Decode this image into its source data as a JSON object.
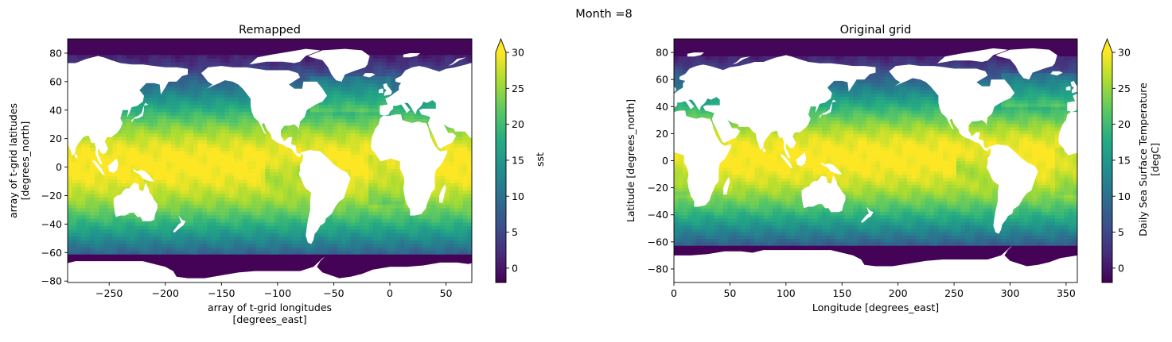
{
  "figure": {
    "suptitle": "Month =8"
  },
  "chart_data": [
    {
      "type": "heatmap",
      "title": "Remapped",
      "xlabel_lines": [
        "array of t-grid longitudes",
        "[degrees_east]"
      ],
      "ylabel_lines": [
        "array of t-grid latitudes",
        "[degrees_north]"
      ],
      "xlim": [
        -287,
        73
      ],
      "ylim": [
        -81,
        90
      ],
      "xticks": [
        -250,
        -200,
        -150,
        -100,
        -50,
        0,
        50
      ],
      "yticks": [
        -80,
        -60,
        -40,
        -20,
        0,
        20,
        40,
        60,
        80
      ],
      "colorbar": {
        "label_lines": [
          "sst"
        ],
        "range": [
          -2,
          30
        ],
        "ticks": [
          0,
          5,
          10,
          15,
          20,
          25,
          30
        ],
        "extend": "max",
        "colormap": "viridis"
      },
      "variable": "sst",
      "land_color": "#ffffff"
    },
    {
      "type": "heatmap",
      "title": "Original grid",
      "xlabel_lines": [
        "Longitude [degrees_east]"
      ],
      "ylabel_lines": [
        "Latitude [degrees_north]"
      ],
      "xlim": [
        0,
        360
      ],
      "ylim": [
        -90,
        90
      ],
      "xticks": [
        0,
        50,
        100,
        150,
        200,
        250,
        300,
        350
      ],
      "yticks": [
        -80,
        -60,
        -40,
        -20,
        0,
        20,
        40,
        60,
        80
      ],
      "colorbar": {
        "label_lines": [
          "Daily Sea Surface Temperature",
          "[degC]"
        ],
        "range": [
          -2,
          30
        ],
        "ticks": [
          0,
          5,
          10,
          15,
          20,
          25,
          30
        ],
        "extend": "max",
        "colormap": "viridis"
      },
      "variable": "sst",
      "land_color": "#ffffff"
    }
  ]
}
